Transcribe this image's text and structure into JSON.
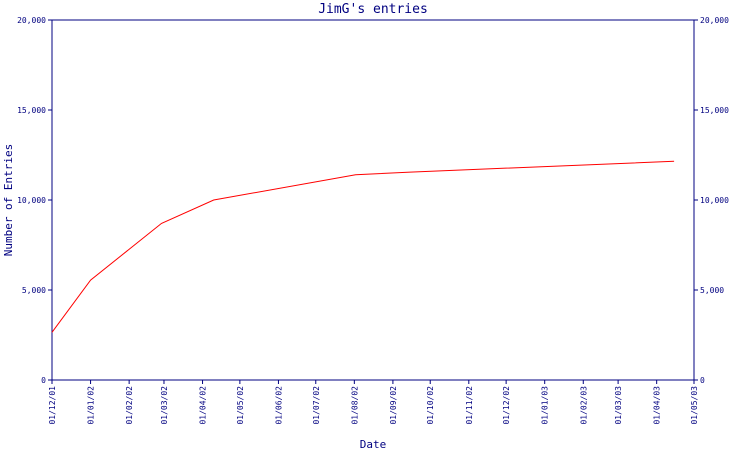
{
  "chart_data": {
    "type": "line",
    "title": "JimG's entries",
    "xlabel": "Date",
    "ylabel": "Number of Entries",
    "grid": false,
    "ylim": [
      0,
      20000
    ],
    "y_ticks": [
      0,
      5000,
      10000,
      15000,
      20000
    ],
    "y_tick_labels": [
      "0",
      "5,000",
      "10,000",
      "15,000",
      "20,000"
    ],
    "x_range": [
      "2001-12-01",
      "2003-05-01"
    ],
    "x_tick_dates": [
      "2001-12-01",
      "2002-01-01",
      "2002-02-01",
      "2002-03-01",
      "2002-04-01",
      "2002-05-01",
      "2002-06-01",
      "2002-07-01",
      "2002-08-01",
      "2002-09-01",
      "2002-10-01",
      "2002-11-01",
      "2002-12-01",
      "2003-01-01",
      "2003-02-01",
      "2003-03-01",
      "2003-04-01",
      "2003-05-01"
    ],
    "x_tick_labels": [
      "01/12/01",
      "01/01/02",
      "01/02/02",
      "01/03/02",
      "01/04/02",
      "01/05/02",
      "01/06/02",
      "01/07/02",
      "01/08/02",
      "01/09/02",
      "01/10/02",
      "01/11/02",
      "01/12/02",
      "01/01/03",
      "01/02/03",
      "01/03/03",
      "01/04/03",
      "01/05/03"
    ],
    "series": [
      {
        "color": "#ff0000",
        "x": [
          "2001-12-01",
          "2002-01-01",
          "2002-02-27",
          "2002-04-10",
          "2002-08-02",
          "2002-09-15",
          "2003-04-15"
        ],
        "y": [
          2650,
          5550,
          8700,
          10000,
          11400,
          11550,
          12150
        ]
      }
    ]
  },
  "colors": {
    "axis": "#000080",
    "text": "#000080",
    "line": "#ff0000",
    "background": "#ffffff"
  }
}
